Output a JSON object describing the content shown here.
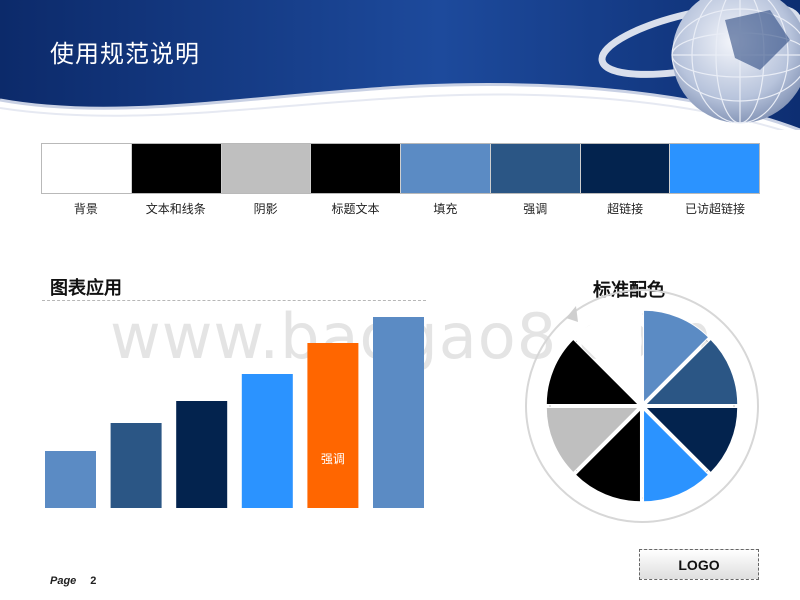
{
  "title": "使用规范说明",
  "palette": [
    {
      "label": "背景",
      "color": "#FFFFFF"
    },
    {
      "label": "文本和线条",
      "color": "#000000"
    },
    {
      "label": "阴影",
      "color": "#BFBFBF"
    },
    {
      "label": "标题文本",
      "color": "#000000"
    },
    {
      "label": "填充",
      "color": "#5B8BC4"
    },
    {
      "label": "强调",
      "color": "#2B5685"
    },
    {
      "label": "超链接",
      "color": "#03234E"
    },
    {
      "label": "已访超链接",
      "color": "#2B93FF"
    }
  ],
  "chart_section": {
    "heading": "图表应用"
  },
  "pie_section": {
    "heading": "标准配色"
  },
  "watermark": "www.baogao8.com",
  "chart_data": {
    "type": "bar",
    "categories": [
      "",
      "",
      "",
      "",
      "",
      ""
    ],
    "values": [
      57,
      85,
      107,
      134,
      165,
      191
    ],
    "colors": [
      "#5B8BC4",
      "#2B5685",
      "#03234E",
      "#2B93FF",
      "#FF6600",
      "#5B8BC4"
    ],
    "annotations": [
      {
        "index": 4,
        "text": "强调"
      }
    ],
    "title": "",
    "xlabel": "",
    "ylabel": "",
    "ylim": [
      0,
      200
    ],
    "grid": false
  },
  "pie_data": {
    "type": "pie",
    "values": [
      1,
      1,
      1,
      1,
      1,
      1,
      1,
      1
    ],
    "colors": [
      "#5B8BC4",
      "#2B5685",
      "#03234E",
      "#2B93FF",
      "#000000",
      "#BFBFBF",
      "#000000",
      "#FFFFFF"
    ]
  },
  "footer": {
    "page_label": "Page",
    "page_number": "2"
  },
  "logo": "LOGO"
}
